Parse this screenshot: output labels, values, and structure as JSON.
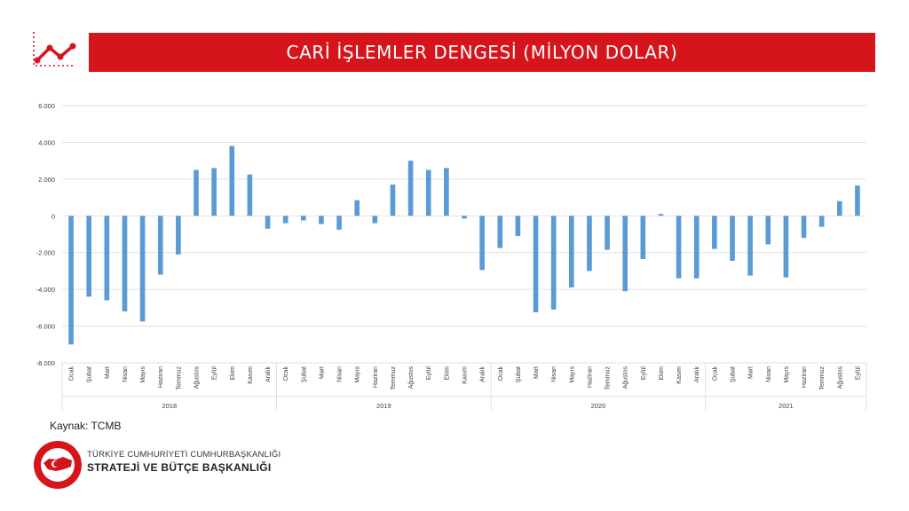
{
  "title": "CARİ İŞLEMLER DENGESİ (MİLYON DOLAR)",
  "source": "Kaynak: TCMB",
  "footer": {
    "line1": "TÜRKİYE CUMHURİYETİ CUMHURBAŞKANLIĞI",
    "line2": "STRATEJİ VE BÜTÇE BAŞKANLIĞI"
  },
  "icons": {
    "header": "line-chart-icon",
    "footer": "organization-seal-logo"
  },
  "colors": {
    "accent": "#d6141b",
    "bar": "#5b9bd5",
    "grid": "#d9d9d9"
  },
  "chart_data": {
    "type": "bar",
    "title": "CARİ İŞLEMLER DENGESİ (MİLYON DOLAR)",
    "ylim": [
      -8000,
      6000
    ],
    "yticks": [
      "6.000",
      "4.000",
      "2.000",
      "0",
      "-2.000",
      "-4.000",
      "-6.000",
      "-8.000"
    ],
    "ytick_values": [
      6000,
      4000,
      2000,
      0,
      -2000,
      -4000,
      -6000,
      -8000
    ],
    "grid": true,
    "groups": [
      {
        "year": "2018",
        "months": [
          "Ocak",
          "Şubat",
          "Mart",
          "Nisan",
          "Mayıs",
          "Haziran",
          "Temmuz",
          "Ağustos",
          "Eylül",
          "Ekim",
          "Kasım",
          "Aralık"
        ],
        "values": [
          -7000,
          -4400,
          -4600,
          -5200,
          -5750,
          -3200,
          -2100,
          2500,
          2600,
          3800,
          2250,
          -700
        ]
      },
      {
        "year": "2019",
        "months": [
          "Ocak",
          "Şubat",
          "Mart",
          "Nisan",
          "Mayıs",
          "Haziran",
          "Temmuz",
          "Ağustos",
          "Eylül",
          "Ekim",
          "Kasım",
          "Aralık"
        ],
        "values": [
          -400,
          -250,
          -450,
          -750,
          850,
          -400,
          1700,
          3000,
          2500,
          2600,
          -150,
          -2950
        ]
      },
      {
        "year": "2020",
        "months": [
          "Ocak",
          "Şubat",
          "Mart",
          "Nisan",
          "Mayıs",
          "Haziran",
          "Temmuz",
          "Ağustos",
          "Eylül",
          "Ekim",
          "Kasım",
          "Aralık"
        ],
        "values": [
          -1750,
          -1100,
          -5250,
          -5100,
          -3900,
          -3000,
          -1850,
          -4100,
          -2350,
          100,
          -3400,
          -3400
        ]
      },
      {
        "year": "2021",
        "months": [
          "Ocak",
          "Şubat",
          "Mart",
          "Nisan",
          "Mayıs",
          "Haziran",
          "Temmuz",
          "Ağustos",
          "Eylül"
        ],
        "values": [
          -1800,
          -2450,
          -3250,
          -1550,
          -3350,
          -1200,
          -600,
          800,
          1650
        ]
      }
    ]
  }
}
